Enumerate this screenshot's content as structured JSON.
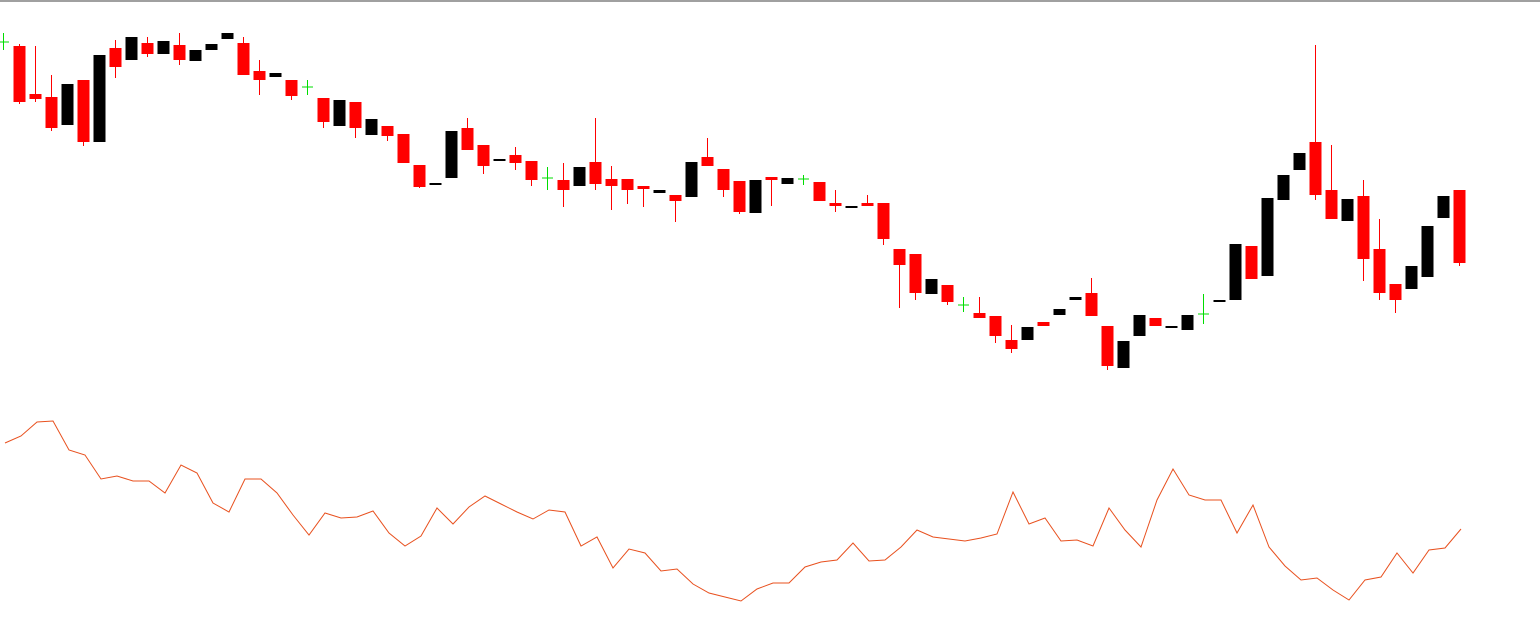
{
  "chart_data": [
    {
      "type": "candlestick",
      "open": [
        358,
        354,
        306,
        303,
        275,
        320,
        258,
        352,
        340,
        357,
        346,
        355,
        339,
        350,
        361,
        357,
        329,
        323,
        320,
        313,
        302,
        274,
        298,
        265,
        274,
        266,
        235,
        215,
        222,
        272,
        255,
        239,
        245,
        239,
        222,
        220,
        214,
        238,
        221,
        221,
        214,
        207,
        205,
        203,
        243,
        231,
        219,
        187,
        223,
        216,
        221,
        218,
        197,
        192,
        197,
        197,
        151,
        146,
        106,
        115,
        95,
        87,
        84,
        60,
        60,
        78,
        85,
        100,
        107,
        74,
        32,
        64,
        82,
        72,
        70,
        86,
        98,
        100,
        154,
        124,
        200,
        230,
        258,
        210,
        179,
        204,
        151,
        116,
        111,
        123,
        182,
        210
      ],
      "high": [
        367,
        356,
        354,
        325,
        316,
        320,
        345,
        360,
        363,
        363,
        359,
        367,
        350,
        356,
        367,
        363,
        340,
        327,
        320,
        320,
        302,
        300,
        298,
        281,
        274,
        266,
        235,
        217,
        269,
        282,
        255,
        241,
        253,
        239,
        233,
        237,
        233,
        282,
        234,
        221,
        214,
        210,
        205,
        238,
        262,
        231,
        219,
        220,
        223,
        222,
        225,
        218,
        210,
        194,
        205,
        197,
        151,
        146,
        121,
        115,
        103,
        103,
        84,
        75,
        73,
        78,
        91,
        103,
        122,
        74,
        59,
        85,
        82,
        74,
        85,
        106,
        100,
        156,
        154,
        202,
        225,
        247,
        355,
        255,
        201,
        220,
        181,
        116,
        134,
        174,
        204,
        210
      ],
      "low": [
        350,
        296,
        298,
        269,
        275,
        254,
        258,
        322,
        340,
        343,
        346,
        335,
        339,
        350,
        361,
        325,
        305,
        323,
        300,
        305,
        272,
        274,
        262,
        265,
        259,
        237,
        212,
        215,
        222,
        250,
        226,
        239,
        230,
        214,
        210,
        193,
        214,
        210,
        190,
        196,
        193,
        207,
        178,
        203,
        234,
        203,
        186,
        187,
        194,
        216,
        215,
        199,
        188,
        192,
        194,
        155,
        92,
        100,
        106,
        95,
        88,
        82,
        57,
        47,
        60,
        74,
        85,
        100,
        84,
        30,
        32,
        64,
        74,
        72,
        70,
        76,
        98,
        100,
        121,
        124,
        200,
        230,
        200,
        181,
        179,
        119,
        100,
        87,
        111,
        123,
        182,
        134
      ],
      "close": [
        358,
        298,
        301,
        272,
        316,
        258,
        345,
        333,
        363,
        346,
        359,
        340,
        350,
        356,
        367,
        325,
        320,
        327,
        304,
        313,
        278,
        300,
        272,
        281,
        264,
        237,
        213,
        217,
        269,
        250,
        234,
        241,
        237,
        220,
        222,
        210,
        233,
        216,
        214,
        210,
        211,
        210,
        199,
        238,
        234,
        210,
        188,
        220,
        220,
        222,
        221,
        199,
        194,
        194,
        194,
        161,
        135,
        107,
        121,
        98,
        95,
        82,
        64,
        51,
        73,
        74,
        91,
        103,
        84,
        34,
        59,
        85,
        74,
        74,
        85,
        86,
        100,
        156,
        121,
        202,
        225,
        247,
        205,
        181,
        201,
        141,
        107,
        100,
        134,
        174,
        204,
        137
      ],
      "up_color": "#000000",
      "down_color": "#ff0000",
      "doji_color": "#00dd00",
      "ylim": [
        0,
        400
      ]
    },
    {
      "type": "line",
      "values": [
        178,
        185,
        199,
        200,
        171,
        166,
        142,
        145,
        140,
        140,
        128,
        156,
        148,
        118,
        109,
        142,
        142,
        128,
        106,
        86,
        108,
        103,
        104,
        110,
        88,
        75,
        85,
        113,
        97,
        114,
        125,
        117,
        109,
        102,
        111,
        109,
        75,
        84,
        53,
        72,
        68,
        50,
        52,
        37,
        28,
        24,
        20,
        32,
        38,
        38,
        54,
        59,
        61,
        78,
        60,
        61,
        74,
        91,
        84,
        82,
        80,
        83,
        87,
        129,
        97,
        103,
        80,
        81,
        75,
        113,
        91,
        74,
        121,
        152,
        126,
        121,
        121,
        88,
        116,
        74,
        55,
        41,
        43,
        31,
        21,
        41,
        44,
        68,
        48,
        71,
        73,
        92
      ],
      "color": "#e8501e",
      "ylim": [
        0,
        221
      ]
    }
  ]
}
